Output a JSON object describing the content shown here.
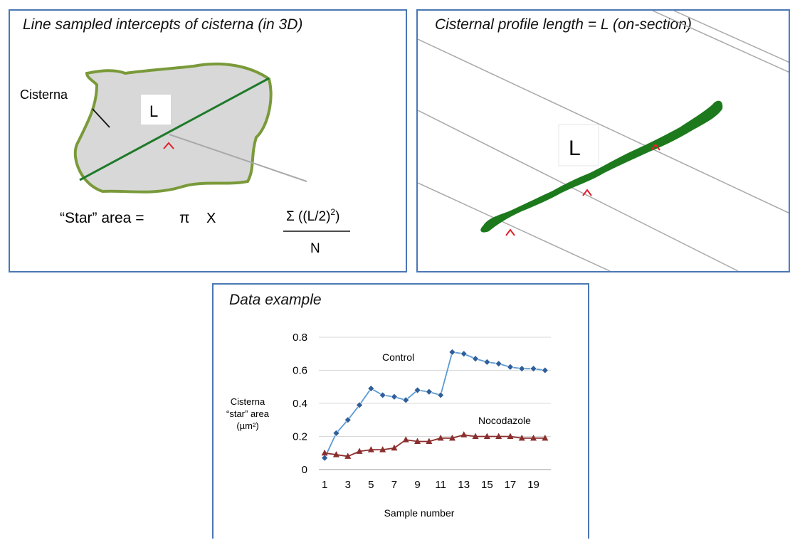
{
  "panel_a": {
    "title": "Line sampled intercepts of cisterna (in 3D)",
    "cisterna_label": "Cisterna",
    "length_label": "L",
    "formula": {
      "left": "“Star” area =",
      "pi": "π",
      "times": "X",
      "numerator_main": "Σ ((L/2)",
      "numerator_exp": "2",
      "numerator_close": ")",
      "denominator": "N"
    }
  },
  "panel_b": {
    "title": "Cisternal profile length = L  (on-section)",
    "length_label": "L"
  },
  "panel_c": {
    "title": "Data example"
  },
  "chart_data": {
    "type": "line",
    "ylabel_lines": [
      "Cisterna",
      "“star” area",
      "(µm²)"
    ],
    "xlabel": "Sample number",
    "ylim": [
      0,
      0.8
    ],
    "yticks": [
      "0",
      "0.2",
      "0.4",
      "0.6",
      "0.8"
    ],
    "xtick_labels": [
      "1",
      "3",
      "5",
      "7",
      "9",
      "11",
      "13",
      "15",
      "17",
      "19"
    ],
    "x": [
      1,
      2,
      3,
      4,
      5,
      6,
      7,
      8,
      9,
      10,
      11,
      12,
      13,
      14,
      15,
      16,
      17,
      18,
      19,
      20
    ],
    "series": [
      {
        "name": "Control",
        "color": "#5b9bd5",
        "marker": "diamond",
        "values": [
          0.07,
          0.22,
          0.3,
          0.39,
          0.49,
          0.45,
          0.44,
          0.42,
          0.48,
          0.47,
          0.45,
          0.71,
          0.7,
          0.67,
          0.65,
          0.64,
          0.62,
          0.61,
          0.61,
          0.6
        ]
      },
      {
        "name": "Nocodazole",
        "color": "#8b2e2e",
        "marker": "triangle",
        "values": [
          0.1,
          0.09,
          0.08,
          0.11,
          0.12,
          0.12,
          0.13,
          0.18,
          0.17,
          0.17,
          0.19,
          0.19,
          0.21,
          0.2,
          0.2,
          0.2,
          0.2,
          0.19,
          0.19,
          0.19
        ]
      }
    ],
    "grid": true,
    "legend": "inline labels"
  }
}
